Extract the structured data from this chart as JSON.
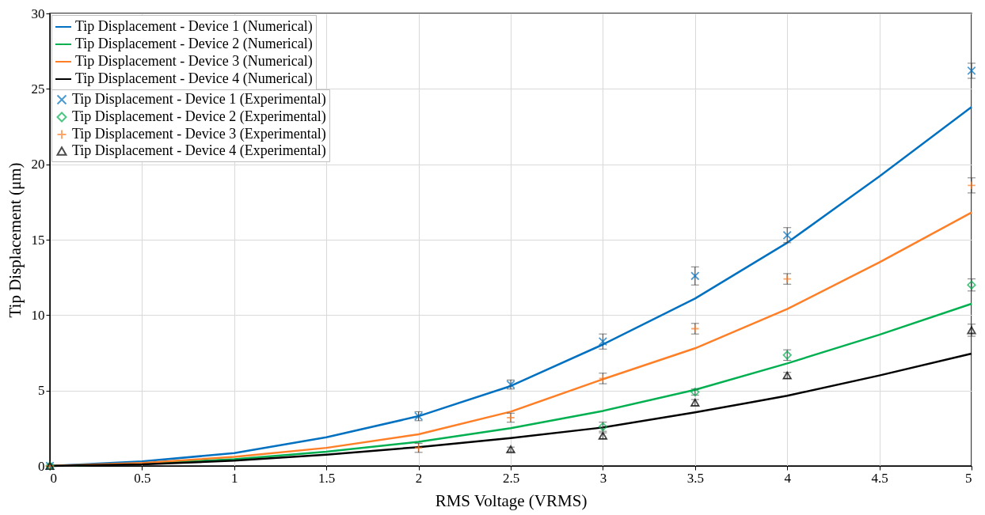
{
  "chart_data": {
    "type": "line",
    "xlabel": "RMS Voltage (VRMS)",
    "ylabel": "Tip Displacement (μm)",
    "xlim": [
      0,
      5
    ],
    "xticks": [
      0,
      0.5,
      1,
      1.5,
      2,
      2.5,
      3,
      3.5,
      4,
      4.5,
      5
    ],
    "ylim": [
      0,
      30
    ],
    "yticks": [
      0,
      5,
      10,
      15,
      20,
      25,
      30
    ],
    "grid": true,
    "legend": "top left",
    "line_style": "solid",
    "series": [
      {
        "name": "Tip Displacement - Device 1 (Numerical)",
        "type": "line",
        "color": "#0070c0",
        "x": [
          0,
          0.5,
          1,
          1.5,
          2,
          2.5,
          3,
          3.5,
          4,
          4.5,
          5
        ],
        "values": [
          0,
          0.3,
          0.85,
          1.9,
          3.3,
          5.3,
          8.05,
          11.1,
          14.8,
          19.2,
          23.8
        ]
      },
      {
        "name": "Tip Displacement - Device 2 (Numerical)",
        "type": "line",
        "color": "#00b050",
        "x": [
          0,
          0.5,
          1,
          1.5,
          2,
          2.5,
          3,
          3.5,
          4,
          4.5,
          5
        ],
        "values": [
          0,
          0.15,
          0.45,
          0.95,
          1.6,
          2.5,
          3.65,
          5.05,
          6.8,
          8.7,
          10.75
        ]
      },
      {
        "name": "Tip Displacement - Device 3 (Numerical)",
        "type": "line",
        "color": "#ff7f27",
        "x": [
          0,
          0.5,
          1,
          1.5,
          2,
          2.5,
          3,
          3.5,
          4,
          4.5,
          5
        ],
        "values": [
          0,
          0.2,
          0.6,
          1.2,
          2.1,
          3.6,
          5.75,
          7.8,
          10.4,
          13.5,
          16.8
        ]
      },
      {
        "name": "Tip Displacement - Device 4 (Numerical)",
        "type": "line",
        "color": "#000000",
        "x": [
          0,
          0.5,
          1,
          1.5,
          2,
          2.5,
          3,
          3.5,
          4,
          4.5,
          5
        ],
        "values": [
          0,
          0.1,
          0.35,
          0.75,
          1.25,
          1.85,
          2.55,
          3.55,
          4.65,
          6.0,
          7.45
        ]
      },
      {
        "name": "Tip Displacement - Device 1 (Experimental)",
        "type": "scatter",
        "color": "#0070c0",
        "marker": "cross",
        "x": [
          0,
          2,
          2.5,
          3,
          3.5,
          4,
          5
        ],
        "values": [
          0,
          3.3,
          5.4,
          8.25,
          12.6,
          15.3,
          26.2
        ],
        "errors": [
          null,
          0.3,
          0.3,
          0.5,
          0.6,
          0.5,
          0.5
        ]
      },
      {
        "name": "Tip Displacement - Device 2 (Experimental)",
        "type": "scatter",
        "color": "#00b050",
        "marker": "diamond",
        "x": [
          0,
          2,
          2.5,
          3,
          3.5,
          4,
          5
        ],
        "values": [
          0,
          null,
          null,
          2.6,
          4.9,
          7.35,
          12.0
        ],
        "errors": [
          null,
          null,
          null,
          0.3,
          0.2,
          0.35,
          0.4
        ]
      },
      {
        "name": "Tip Displacement - Device 3 (Experimental)",
        "type": "scatter",
        "color": "#ff7f27",
        "marker": "plus",
        "x": [
          0,
          2,
          2.5,
          3,
          3.5,
          4,
          5
        ],
        "values": [
          0,
          1.2,
          3.2,
          5.8,
          9.1,
          12.4,
          18.6
        ],
        "errors": [
          null,
          0.3,
          0.3,
          0.35,
          0.35,
          0.35,
          0.5
        ]
      },
      {
        "name": "Tip Displacement - Device 4 (Experimental)",
        "type": "scatter",
        "color": "#000000",
        "marker": "triangle",
        "x": [
          0,
          2,
          2.5,
          3,
          3.5,
          4,
          5
        ],
        "values": [
          0,
          null,
          1.1,
          2.0,
          4.2,
          6.0,
          9.0
        ],
        "errors": [
          null,
          null,
          0.15,
          0.2,
          0.2,
          0.2,
          0.4
        ]
      }
    ]
  }
}
